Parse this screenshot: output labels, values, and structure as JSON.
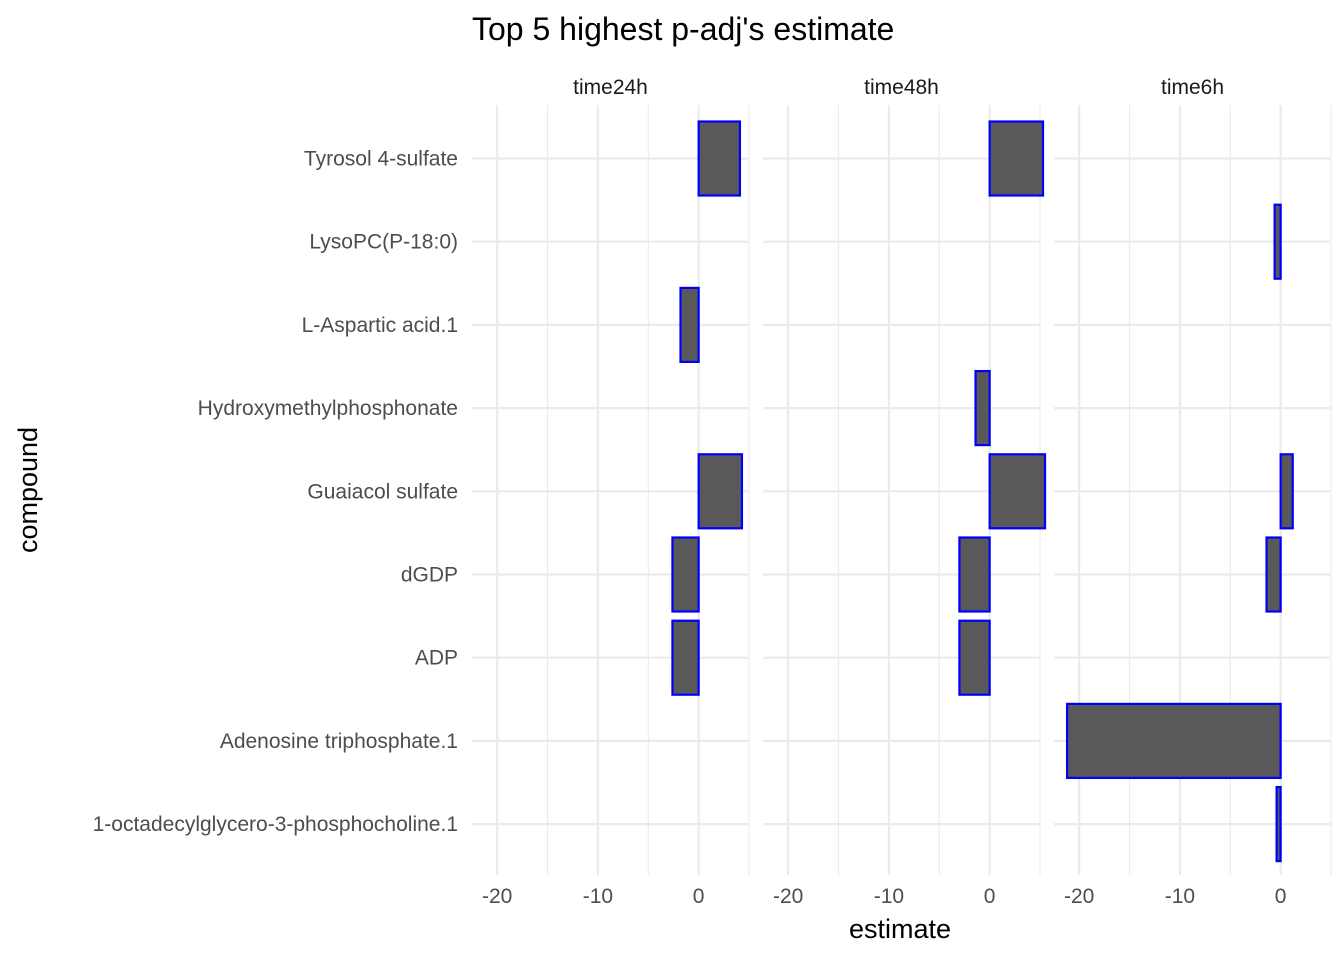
{
  "chart_data": {
    "type": "bar",
    "orientation": "horizontal",
    "title": "Top 5 highest p-adj's estimate",
    "xlabel": "estimate",
    "ylabel": "compound",
    "xlim": [
      -22.5,
      5
    ],
    "x_ticks": [
      -20,
      -10,
      0
    ],
    "x_tick_labels": [
      "-20",
      "-10",
      "0"
    ],
    "grid": true,
    "categories": [
      "Tyrosol 4-sulfate",
      "LysoPC(P-18:0)",
      "L-Aspartic acid.1",
      "Hydroxymethylphosphonate",
      "Guaiacol sulfate",
      "dGDP",
      "ADP",
      "Adenosine triphosphate.1",
      "1-octadecylglycero-3-phosphocholine.1"
    ],
    "facets": [
      {
        "name": "time24h",
        "values": [
          4.1,
          null,
          -1.8,
          null,
          4.3,
          -2.6,
          -2.6,
          null,
          null
        ]
      },
      {
        "name": "time48h",
        "values": [
          5.3,
          null,
          null,
          -1.4,
          5.5,
          -3.0,
          -3.0,
          null,
          null
        ]
      },
      {
        "name": "time6h",
        "values": [
          null,
          -0.6,
          null,
          null,
          1.2,
          -1.4,
          null,
          -21.2,
          -0.4
        ]
      }
    ]
  }
}
